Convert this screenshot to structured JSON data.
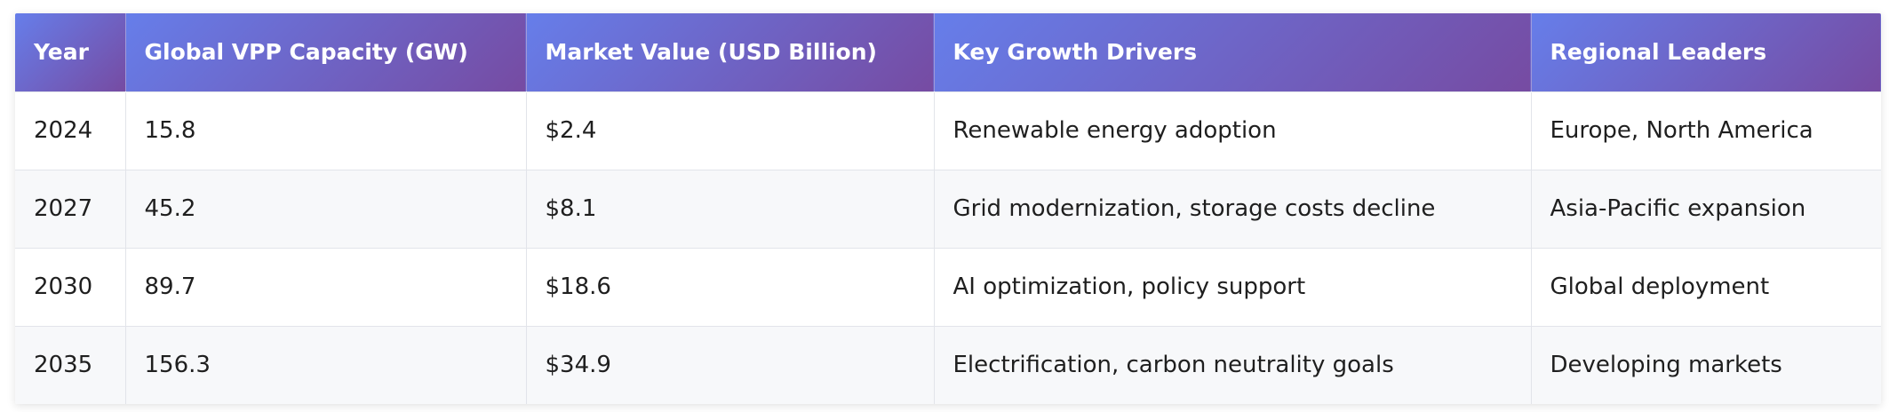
{
  "table": {
    "headers": [
      "Year",
      "Global VPP Capacity (GW)",
      "Market Value (USD Billion)",
      "Key Growth Drivers",
      "Regional Leaders"
    ],
    "rows": [
      [
        "2024",
        "15.8",
        "$2.4",
        "Renewable energy adoption",
        "Europe, North America"
      ],
      [
        "2027",
        "45.2",
        "$8.1",
        "Grid modernization, storage costs decline",
        "Asia-Pacific expansion"
      ],
      [
        "2030",
        "89.7",
        "$18.6",
        "AI optimization, policy support",
        "Global deployment"
      ],
      [
        "2035",
        "156.3",
        "$34.9",
        "Electrification, carbon neutrality goals",
        "Developing markets"
      ]
    ]
  },
  "colors": {
    "header_gradient_start": "#667eea",
    "header_gradient_end": "#764ba2",
    "row_alt": "#f7f8fa",
    "border": "#e2e4ea"
  }
}
